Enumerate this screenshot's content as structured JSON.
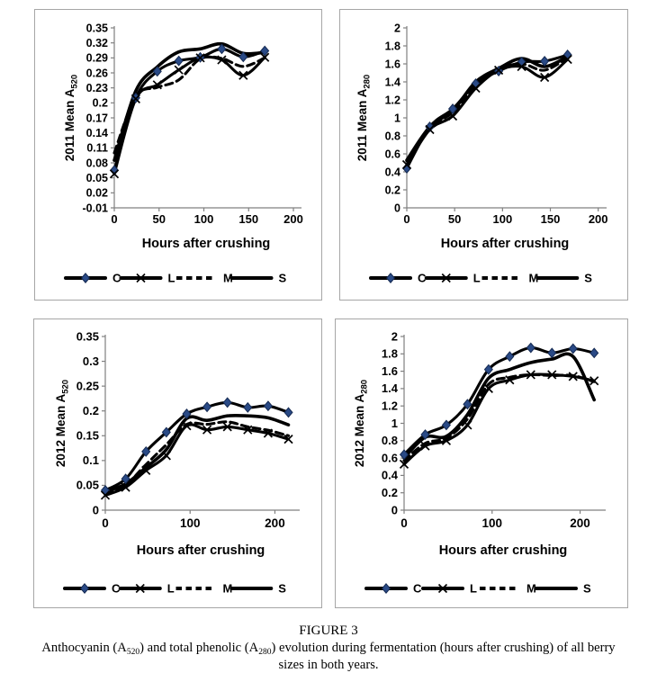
{
  "caption": {
    "figure_label": "FIGURE 3",
    "desc": {
      "a": "Anthocyanin (A",
      "a_sub": "520",
      "b": ") and total phenolic (A",
      "b_sub": "280",
      "c": ") evolution during fermentation (hours after crushing) of all berry",
      "line2": "sizes in both years."
    }
  },
  "colors": {
    "line": "#000000",
    "axis": "#808080",
    "tick_label": "#000000",
    "panel_border": "#a6a6a6",
    "diamond_fill": "#2a4a86",
    "diamond_stroke": "#152a52"
  },
  "legend_labels": [
    "C",
    "L",
    "M",
    "S"
  ],
  "chart_data": [
    {
      "type": "line",
      "ylabel_prefix": "2011 Mean A",
      "ylabel_sub": "520",
      "xlabel": "Hours after crushing",
      "x": [
        0,
        24,
        48,
        72,
        96,
        120,
        144,
        168
      ],
      "xlim": [
        0,
        205
      ],
      "xtick_values": [
        0,
        50,
        100,
        150,
        200
      ],
      "xtick_labels": [
        "0",
        "50",
        "100",
        "150",
        "200"
      ],
      "ylim": [
        -0.01,
        0.35
      ],
      "ytick_values": [
        0.35,
        0.32,
        0.29,
        0.26,
        0.23,
        0.2,
        0.17,
        0.14,
        0.11,
        0.08,
        0.05,
        0.02,
        -0.01
      ],
      "ytick_labels": [
        "0.35",
        "0.32",
        "0.29",
        "0.26",
        "0.23",
        "0.2",
        "0.17",
        "0.14",
        "0.11",
        "0.08",
        "0.05",
        "0.02",
        "-0.01"
      ],
      "legend_position": "bottom",
      "grid": false,
      "series": [
        {
          "name": "C",
          "marker": "diamond",
          "dash": "solid",
          "width": 3.1,
          "values": [
            0.065,
            0.21,
            0.263,
            0.284,
            0.291,
            0.308,
            0.292,
            0.304
          ]
        },
        {
          "name": "L",
          "marker": "x",
          "dash": "solid",
          "width": 3.1,
          "values": [
            0.058,
            0.208,
            0.236,
            0.266,
            0.29,
            0.286,
            0.255,
            0.291
          ]
        },
        {
          "name": "M",
          "marker": "none",
          "dash": "dashed",
          "width": 3.1,
          "values": [
            0.1,
            0.213,
            0.231,
            0.246,
            0.288,
            0.289,
            0.273,
            0.29
          ]
        },
        {
          "name": "S",
          "marker": "none",
          "dash": "solid",
          "width": 3.6,
          "values": [
            0.085,
            0.224,
            0.272,
            0.302,
            0.308,
            0.318,
            0.299,
            0.301
          ]
        }
      ]
    },
    {
      "type": "line",
      "ylabel_prefix": "2011 Mean A",
      "ylabel_sub": "280",
      "xlabel": "Hours after crushing",
      "x": [
        0,
        24,
        48,
        72,
        96,
        120,
        144,
        168
      ],
      "xlim": [
        0,
        205
      ],
      "xtick_values": [
        0,
        50,
        100,
        150,
        200
      ],
      "xtick_labels": [
        "0",
        "50",
        "100",
        "150",
        "200"
      ],
      "ylim": [
        0,
        2
      ],
      "ytick_values": [
        2,
        1.8,
        1.6,
        1.4,
        1.2,
        1,
        0.8,
        0.6,
        0.4,
        0.2,
        0
      ],
      "ytick_labels": [
        "2",
        "1.8",
        "1.6",
        "1.4",
        "1.2",
        "1",
        "0.8",
        "0.6",
        "0.4",
        "0.2",
        "0"
      ],
      "legend_position": "bottom",
      "grid": false,
      "series": [
        {
          "name": "C",
          "marker": "diamond",
          "dash": "solid",
          "width": 3.1,
          "values": [
            0.44,
            0.9,
            1.1,
            1.38,
            1.52,
            1.62,
            1.63,
            1.7
          ]
        },
        {
          "name": "L",
          "marker": "x",
          "dash": "solid",
          "width": 3.1,
          "values": [
            0.48,
            0.87,
            1.02,
            1.33,
            1.53,
            1.57,
            1.45,
            1.65
          ]
        },
        {
          "name": "M",
          "marker": "none",
          "dash": "dashed",
          "width": 3.1,
          "values": [
            0.52,
            0.89,
            1.06,
            1.36,
            1.54,
            1.6,
            1.53,
            1.67
          ]
        },
        {
          "name": "S",
          "marker": "none",
          "dash": "solid",
          "width": 3.6,
          "values": [
            0.53,
            0.9,
            1.08,
            1.4,
            1.55,
            1.66,
            1.57,
            1.68
          ]
        }
      ]
    },
    {
      "type": "line",
      "ylabel_prefix": "2012 Mean A",
      "ylabel_sub": "520",
      "xlabel": "Hours after crushing",
      "x": [
        0,
        24,
        48,
        72,
        96,
        120,
        144,
        168,
        192,
        216
      ],
      "xlim": [
        0,
        225
      ],
      "xtick_values": [
        0,
        100,
        200
      ],
      "xtick_labels": [
        "0",
        "100",
        "200"
      ],
      "ylim": [
        0,
        0.35
      ],
      "ytick_values": [
        0.35,
        0.3,
        0.25,
        0.2,
        0.15,
        0.1,
        0.05,
        0
      ],
      "ytick_labels": [
        "0.35",
        "0.3",
        "0.25",
        "0.2",
        "0.15",
        "0.1",
        "0.05",
        "0"
      ],
      "legend_position": "bottom",
      "grid": false,
      "series": [
        {
          "name": "C",
          "marker": "diamond",
          "dash": "solid",
          "width": 3.1,
          "values": [
            0.04,
            0.063,
            0.118,
            0.157,
            0.194,
            0.208,
            0.217,
            0.207,
            0.21,
            0.197
          ]
        },
        {
          "name": "L",
          "marker": "x",
          "dash": "solid",
          "width": 3.1,
          "values": [
            0.03,
            0.046,
            0.08,
            0.11,
            0.17,
            0.162,
            0.168,
            0.162,
            0.155,
            0.143
          ]
        },
        {
          "name": "M",
          "marker": "none",
          "dash": "dashed",
          "width": 3.1,
          "values": [
            0.035,
            0.051,
            0.092,
            0.132,
            0.173,
            0.173,
            0.178,
            0.168,
            0.161,
            0.15
          ]
        },
        {
          "name": "S",
          "marker": "none",
          "dash": "solid",
          "width": 3.6,
          "values": [
            0.037,
            0.053,
            0.086,
            0.122,
            0.185,
            0.181,
            0.19,
            0.19,
            0.186,
            0.172
          ]
        }
      ]
    },
    {
      "type": "line",
      "ylabel_prefix": "2012 Mean A",
      "ylabel_sub": "280",
      "xlabel": "Hours after crushing",
      "x": [
        0,
        24,
        48,
        72,
        96,
        120,
        144,
        168,
        192,
        216
      ],
      "xlim": [
        0,
        225
      ],
      "xtick_values": [
        0,
        100,
        200
      ],
      "xtick_labels": [
        "0",
        "100",
        "200"
      ],
      "ylim": [
        0,
        2
      ],
      "ytick_values": [
        2,
        1.8,
        1.6,
        1.4,
        1.2,
        1,
        0.8,
        0.6,
        0.4,
        0.2,
        0
      ],
      "ytick_labels": [
        "2",
        "1.8",
        "1.6",
        "1.4",
        "1.2",
        "1",
        "0.8",
        "0.6",
        "0.4",
        "0.2",
        "0"
      ],
      "legend_position": "bottom",
      "grid": false,
      "series": [
        {
          "name": "C",
          "marker": "diamond",
          "dash": "solid",
          "width": 3.1,
          "values": [
            0.64,
            0.87,
            0.98,
            1.22,
            1.62,
            1.77,
            1.87,
            1.81,
            1.86,
            1.81
          ]
        },
        {
          "name": "L",
          "marker": "x",
          "dash": "solid",
          "width": 3.1,
          "values": [
            0.53,
            0.74,
            0.8,
            0.98,
            1.4,
            1.5,
            1.56,
            1.56,
            1.54,
            1.49
          ]
        },
        {
          "name": "M",
          "marker": "none",
          "dash": "dashed",
          "width": 3.1,
          "values": [
            0.57,
            0.77,
            0.83,
            1.05,
            1.45,
            1.53,
            1.56,
            1.55,
            1.55,
            1.48
          ]
        },
        {
          "name": "S",
          "marker": "none",
          "dash": "solid",
          "width": 3.6,
          "values": [
            0.6,
            0.84,
            0.85,
            1.1,
            1.52,
            1.62,
            1.7,
            1.74,
            1.77,
            1.27
          ]
        }
      ]
    }
  ]
}
